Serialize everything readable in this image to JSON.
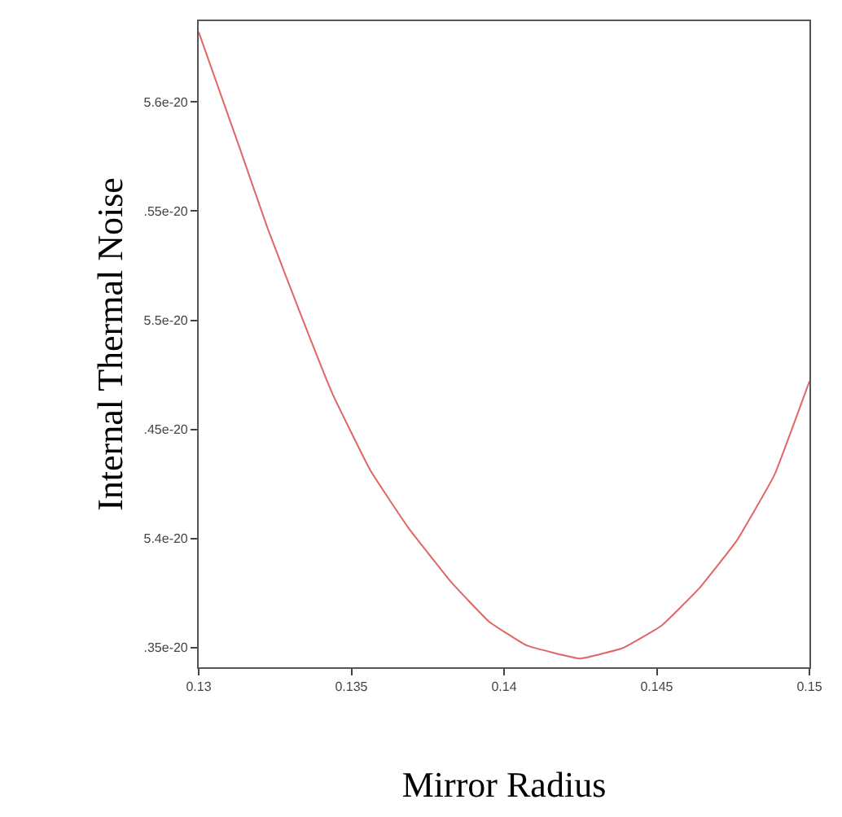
{
  "chart_data": {
    "type": "line",
    "xlabel": "Mirror Radius",
    "ylabel": "Internal Thermal Noise",
    "x": [
      0.13,
      0.13134,
      0.13226,
      0.13333,
      0.13439,
      0.13563,
      0.13686,
      0.13827,
      0.1395,
      0.14074,
      0.1425,
      0.14392,
      0.14515,
      0.14638,
      0.14762,
      0.14885,
      0.15
    ],
    "series": [
      {
        "color": "#e06666",
        "values": [
          5.632e-20,
          5.579e-20,
          5.542e-20,
          5.503e-20,
          5.466e-20,
          5.431e-20,
          5.405e-20,
          5.38e-20,
          5.362e-20,
          5.351e-20,
          5.345e-20,
          5.35e-20,
          5.36e-20,
          5.377e-20,
          5.399e-20,
          5.429e-20,
          5.472e-20
        ]
      }
    ],
    "xlim": [
      0.13,
      0.15
    ],
    "ylim": [
      5.341e-20,
      5.637e-20
    ],
    "xticks": [
      0.13,
      0.135,
      0.14,
      0.145,
      0.15
    ],
    "yticks": [
      {
        "value": 5.35e-20,
        "label": ".35e-20"
      },
      {
        "value": 5.4e-20,
        "label": "5.4e-20"
      },
      {
        "value": 5.45e-20,
        "label": ".45e-20"
      },
      {
        "value": 5.5e-20,
        "label": "5.5e-20"
      },
      {
        "value": 5.55e-20,
        "label": ".55e-20"
      },
      {
        "value": 5.6e-20,
        "label": "5.6e-20"
      }
    ],
    "marker": "none",
    "line_style": "solid"
  }
}
